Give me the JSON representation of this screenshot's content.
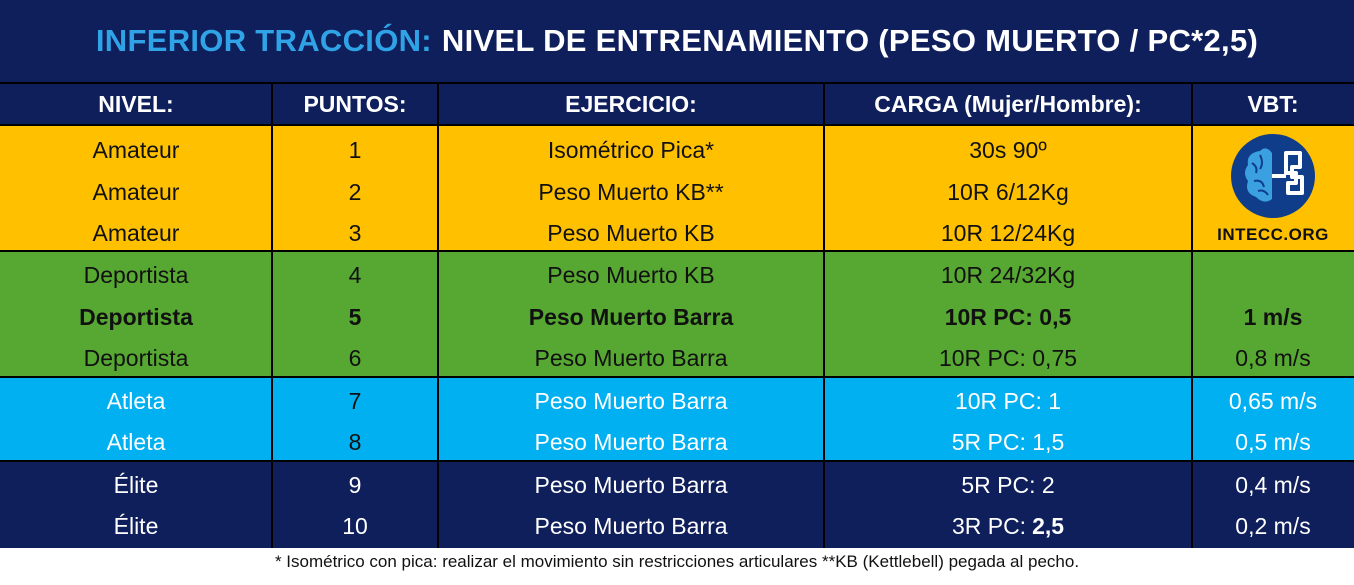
{
  "title": {
    "accent": "INFERIOR TRACCIÓN:",
    "main": "NIVEL DE ENTRENAMIENTO (PESO MUERTO / PC*2,5)"
  },
  "headers": [
    "NIVEL:",
    "PUNTOS:",
    "EJERCICIO:",
    "CARGA (Mujer/Hombre):",
    "VBT:"
  ],
  "rows": [
    {
      "nivel": "Amateur",
      "puntos": "1",
      "ejercicio": "Isométrico Pica*",
      "carga": "30s 90º",
      "vbt": ""
    },
    {
      "nivel": "Amateur",
      "puntos": "2",
      "ejercicio": "Peso Muerto KB**",
      "carga": "10R 6/12Kg",
      "vbt": ""
    },
    {
      "nivel": "Amateur",
      "puntos": "3",
      "ejercicio": "Peso Muerto KB",
      "carga": "10R 12/24Kg",
      "vbt": ""
    },
    {
      "nivel": "Deportista",
      "puntos": "4",
      "ejercicio": "Peso Muerto KB",
      "carga": "10R 24/32Kg",
      "vbt": ""
    },
    {
      "nivel": "Deportista",
      "puntos": "5",
      "ejercicio": "Peso Muerto Barra",
      "carga": "10R PC: 0,5",
      "vbt": "1 m/s"
    },
    {
      "nivel": "Deportista",
      "puntos": "6",
      "ejercicio": "Peso Muerto Barra",
      "carga": "10R PC: 0,75",
      "vbt": "0,8 m/s"
    },
    {
      "nivel": "Atleta",
      "puntos": "7",
      "ejercicio": "Peso Muerto Barra",
      "carga": "10R PC: 1",
      "vbt": "0,65 m/s"
    },
    {
      "nivel": "Atleta",
      "puntos": "8",
      "ejercicio": "Peso Muerto Barra",
      "carga": "5R PC: 1,5",
      "vbt": "0,5 m/s"
    },
    {
      "nivel": "Élite",
      "puntos": "9",
      "ejercicio": "Peso Muerto Barra",
      "carga": "5R PC: 2",
      "vbt": "0,4 m/s"
    },
    {
      "nivel": "Élite",
      "puntos": "10",
      "ejercicio": "Peso Muerto Barra",
      "carga_prefix": "3R PC:",
      "carga_value": "2,5",
      "vbt": "0,2 m/s"
    }
  ],
  "logo": {
    "text": "INTECC.ORG",
    "icon": "brain-logo-icon"
  },
  "footnote": "* Isométrico con pica: realizar el movimiento sin restricciones articulares  **KB (Kettlebell) pegada al pecho.",
  "colors": {
    "title_bg": "#0f1f5c",
    "title_accent": "#2fa3e6",
    "amateur": "#ffc000",
    "deportista": "#56a832",
    "atleta": "#00b0f0",
    "elite": "#0f1f5c"
  }
}
